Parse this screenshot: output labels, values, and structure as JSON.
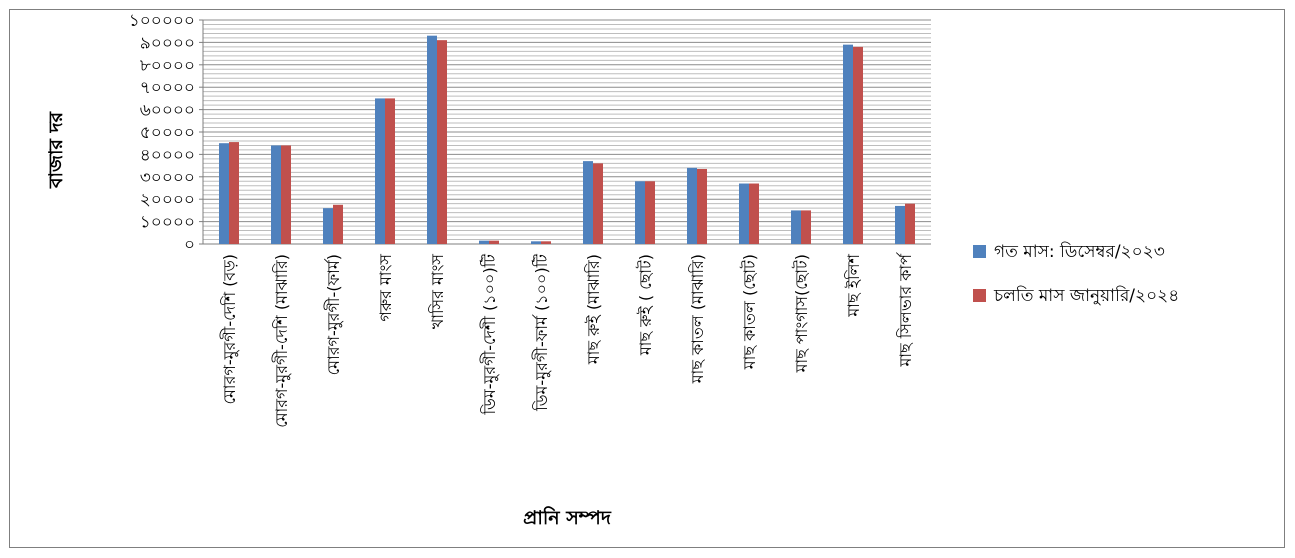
{
  "chart_data": {
    "type": "bar",
    "title": "",
    "xlabel": "প্রানি সম্পদ",
    "ylabel": "বাজার দর",
    "ylim": [
      0,
      100000
    ],
    "yticks": [
      "০",
      "১০০০০",
      "২০০০০",
      "৩০০০০",
      "৪০০০০",
      "৫০০০০",
      "৬০০০০",
      "৭০০০০",
      "৮০০০০",
      "৯০০০০",
      "১০০০০০"
    ],
    "grid": true,
    "legend_position": "right",
    "categories": [
      "মোরগ-মুরগী-দেশি (বড়)",
      "মোরগ-মুরগী-দেশি (মাঝারি)",
      "মোরগ-মুরগী-(ফার্ম)",
      "গরুর মাংস",
      "খাসির মাংস",
      "ডিম-মুরগী-দেশী (১০০)টি",
      "ডিম-মুরগী-ফার্ম (১০০)টি",
      "মাছ রুই (মাঝারি)",
      "মাছ রুই ( ছোট)",
      "মাছ কাতল (মাঝারি)",
      "মাছ কাতল (ছোট)",
      "মাছ পাংগাস(ছোট)",
      "মাছ ইলিশ",
      "মাছ সিলভার কার্প"
    ],
    "series": [
      {
        "name": "গত মাস: ডিসেম্বর/২০২৩",
        "color": "#4f81bd",
        "values": [
          45000,
          44000,
          16000,
          65000,
          93000,
          1500,
          1200,
          37000,
          28000,
          34000,
          27000,
          15000,
          89000,
          17000
        ]
      },
      {
        "name": "চলতি মাস জানুয়ারি/২০২৪",
        "color": "#c0504d",
        "values": [
          45500,
          44000,
          17500,
          65000,
          91000,
          1500,
          1200,
          36000,
          28000,
          33500,
          27000,
          15000,
          88000,
          18000
        ]
      }
    ]
  }
}
